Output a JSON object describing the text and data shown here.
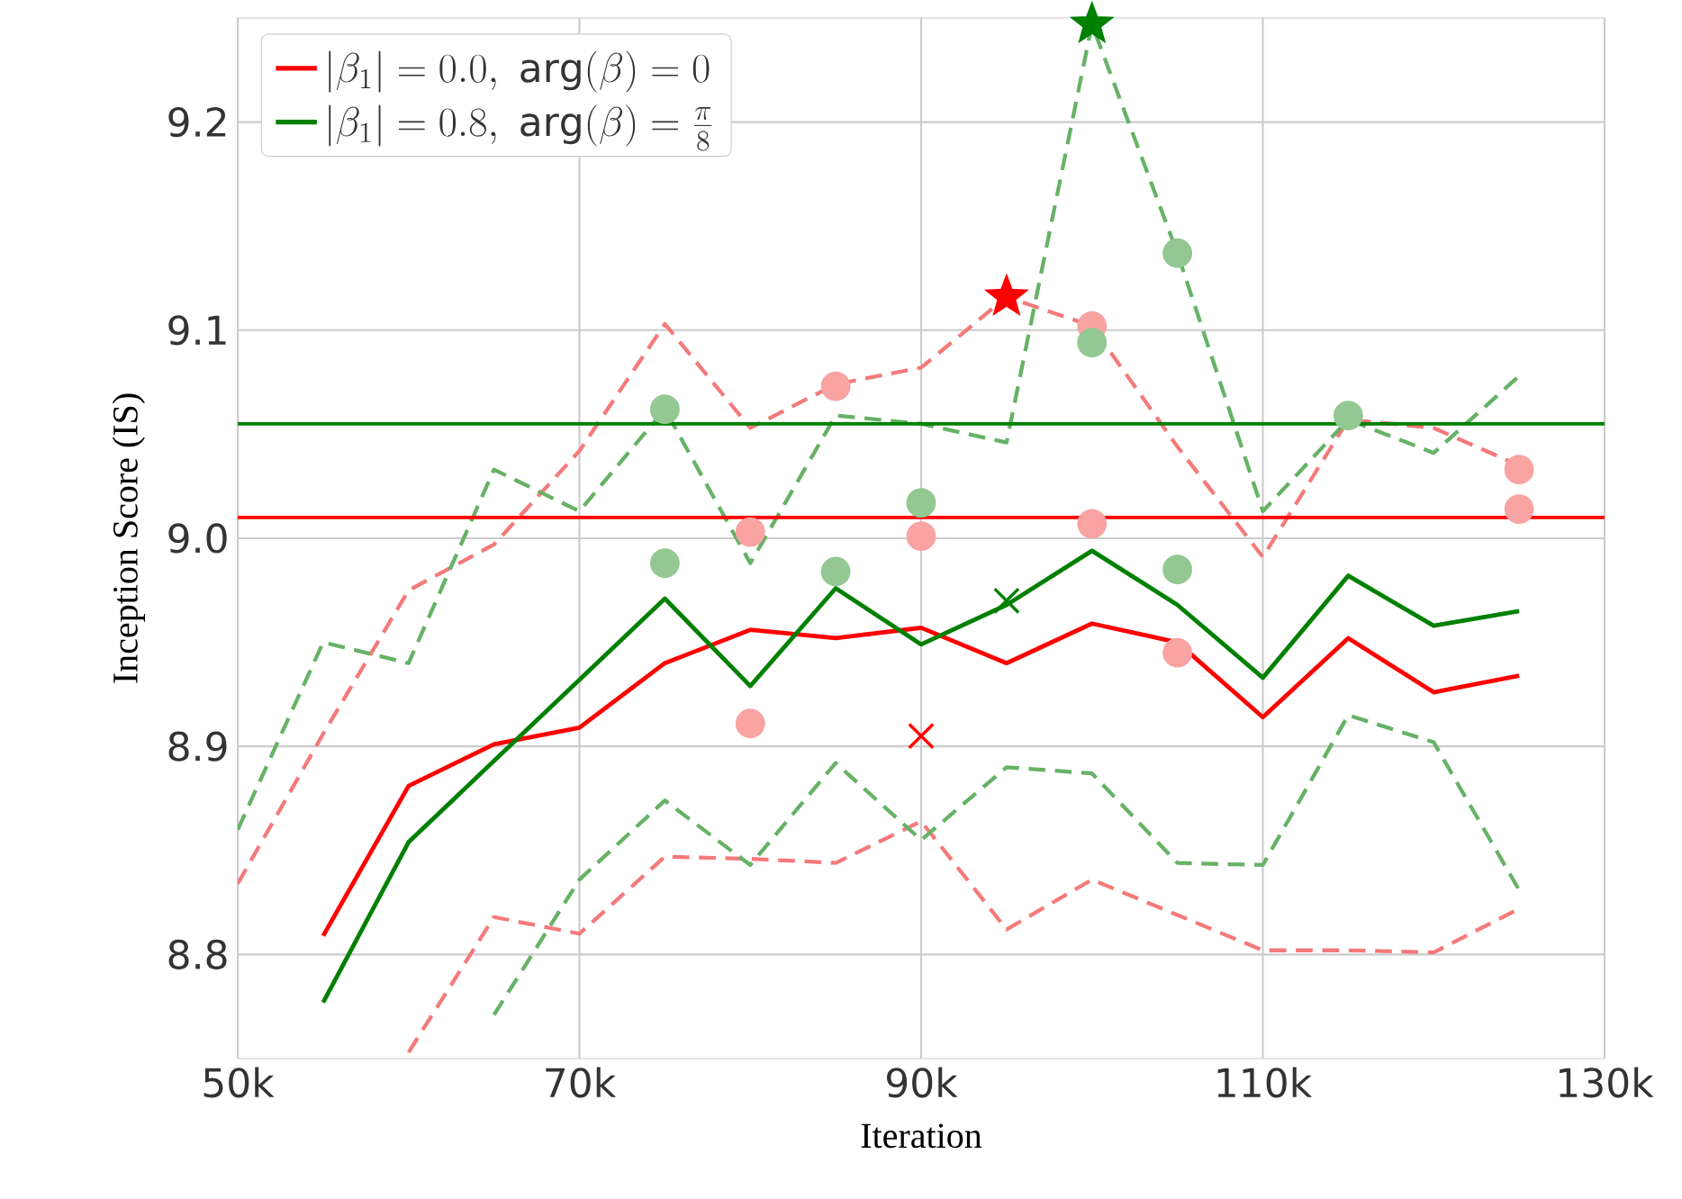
{
  "chart_data": {
    "type": "line",
    "xlabel": "Iteration",
    "ylabel": "Inception Score (IS)",
    "x": [
      50000,
      55000,
      60000,
      65000,
      70000,
      75000,
      80000,
      85000,
      90000,
      95000,
      100000,
      105000,
      110000,
      115000,
      120000,
      125000
    ],
    "xlim": [
      50000,
      130000
    ],
    "xticks": [
      {
        "value": 50000,
        "label": "50k"
      },
      {
        "value": 70000,
        "label": "70k"
      },
      {
        "value": 90000,
        "label": "90k"
      },
      {
        "value": 110000,
        "label": "110k"
      },
      {
        "value": 130000,
        "label": "130k"
      }
    ],
    "ylim": [
      8.75,
      9.25
    ],
    "yticks": [
      {
        "value": 8.8,
        "label": "8.8"
      },
      {
        "value": 8.9,
        "label": "8.9"
      },
      {
        "value": 9.0,
        "label": "9.0"
      },
      {
        "value": 9.1,
        "label": "9.1"
      },
      {
        "value": 9.2,
        "label": "9.2"
      }
    ],
    "grid": true,
    "legend": "top left",
    "series": [
      {
        "name": "|\\beta_1| = 0.0,\\ \\mathrm{arg}(\\beta) = 0",
        "type": "line",
        "color": "#ff0000",
        "line_style": "solid",
        "values": [
          null,
          8.809,
          8.881,
          8.901,
          8.909,
          8.94,
          8.956,
          8.952,
          8.957,
          8.94,
          8.959,
          8.95,
          8.914,
          8.952,
          8.926,
          8.934
        ]
      },
      {
        "name": "|\\beta_1| = 0.8,\\ \\mathrm{arg}(\\beta) = \\frac{\\pi}{8}",
        "type": "line",
        "color": "#008000",
        "line_style": "solid",
        "values": [
          null,
          8.777,
          8.854,
          8.893,
          8.932,
          8.971,
          8.929,
          8.976,
          8.949,
          8.968,
          8.994,
          8.968,
          8.933,
          8.982,
          8.958,
          8.965
        ]
      },
      {
        "type": "line",
        "color": "#f47a7a",
        "line_style": "dashed",
        "values": [
          8.834,
          8.906,
          8.975,
          8.997,
          9.042,
          9.103,
          9.053,
          9.074,
          9.082,
          9.116,
          9.102,
          9.044,
          8.991,
          9.057,
          9.053,
          9.035
        ]
      },
      {
        "type": "line",
        "color": "#f47a7a",
        "line_style": "dashed",
        "values": [
          null,
          null,
          8.753,
          8.818,
          8.81,
          8.847,
          8.846,
          8.844,
          8.864,
          8.812,
          8.836,
          8.819,
          8.802,
          8.802,
          8.801,
          8.822
        ]
      },
      {
        "type": "line",
        "color": "#66b266",
        "line_style": "dashed",
        "values": [
          8.86,
          8.95,
          8.94,
          9.033,
          9.013,
          9.062,
          8.988,
          9.059,
          9.055,
          9.046,
          9.247,
          9.137,
          9.013,
          9.057,
          9.041,
          9.078
        ]
      },
      {
        "type": "line",
        "color": "#66b266",
        "line_style": "dashed",
        "values": [
          null,
          null,
          null,
          8.771,
          8.836,
          8.874,
          8.843,
          8.892,
          8.855,
          8.89,
          8.887,
          8.844,
          8.843,
          8.915,
          8.902,
          8.831
        ]
      },
      {
        "type": "scatter",
        "marker": "circle",
        "color": "#f9a3a3",
        "x": [
          80000,
          80000,
          85000,
          90000,
          100000,
          100000,
          105000,
          125000,
          125000
        ],
        "values": [
          9.003,
          8.911,
          9.073,
          9.001,
          9.102,
          9.007,
          8.945,
          9.033,
          9.014
        ]
      },
      {
        "type": "scatter",
        "marker": "circle",
        "color": "#93c893",
        "x": [
          75000,
          75000,
          85000,
          90000,
          100000,
          105000,
          105000,
          115000
        ],
        "values": [
          9.062,
          8.988,
          8.984,
          9.017,
          9.094,
          9.137,
          8.985,
          9.059
        ]
      },
      {
        "type": "scatter",
        "marker": "star",
        "color": "#ff0000",
        "x": [
          95000
        ],
        "values": [
          9.116
        ]
      },
      {
        "type": "scatter",
        "marker": "star",
        "color": "#008000",
        "x": [
          100000
        ],
        "values": [
          9.247
        ]
      },
      {
        "type": "scatter",
        "marker": "cross",
        "color": "#ff0000",
        "x": [
          90000
        ],
        "values": [
          8.905
        ]
      },
      {
        "type": "scatter",
        "marker": "cross",
        "color": "#008000",
        "x": [
          95000
        ],
        "values": [
          8.97
        ]
      }
    ],
    "ref_lines": [
      {
        "axis": "y",
        "value": 9.055,
        "color": "#008000"
      },
      {
        "axis": "y",
        "value": 9.01,
        "color": "#ff0000"
      }
    ]
  }
}
